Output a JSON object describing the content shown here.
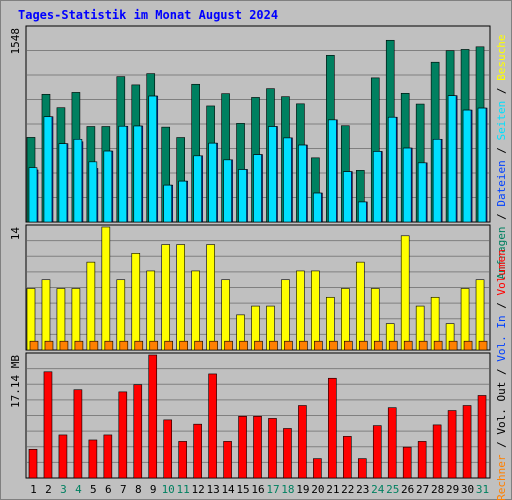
{
  "title": "Tages-Statistik im Monat August 2024",
  "colors": {
    "anfragen": "#008060",
    "dateien": "#0040ff",
    "seiten": "#00e0ff",
    "besuche": "#ffff00",
    "rechner": "#ff8000",
    "volume": "#ff0000",
    "panel_bg": "#c0c0c0",
    "grid": "#808080",
    "title": "#0000ff"
  },
  "chart_data": [
    {
      "type": "bar",
      "panel": "top",
      "ylabel_max": "1548",
      "ylim": [
        0,
        1548
      ],
      "categories": [
        "1",
        "2",
        "3",
        "4",
        "5",
        "6",
        "7",
        "8",
        "9",
        "10",
        "11",
        "12",
        "13",
        "14",
        "15",
        "16",
        "17",
        "18",
        "19",
        "20",
        "21",
        "22",
        "23",
        "24",
        "25",
        "26",
        "27",
        "28",
        "29",
        "30",
        "31"
      ],
      "weekend_days": [
        "3",
        "4",
        "10",
        "11",
        "17",
        "18",
        "24",
        "25",
        "31"
      ],
      "grid": true,
      "right_label": {
        "parts": [
          {
            "text": "Anfragen",
            "color": "#008060"
          },
          {
            "text": " / ",
            "color": "#000000"
          },
          {
            "text": "Dateien",
            "color": "#0040ff"
          },
          {
            "text": " / ",
            "color": "#000000"
          },
          {
            "text": "Seiten",
            "color": "#00e0ff"
          },
          {
            "text": " / ",
            "color": "#000000"
          },
          {
            "text": "Besuche",
            "color": "#ffff00"
          }
        ]
      },
      "series": [
        {
          "name": "Anfragen",
          "values": [
            675,
            1019,
            912,
            1034,
            762,
            762,
            1160,
            1094,
            1184,
            757,
            674,
            1099,
            926,
            1024,
            787,
            994,
            1064,
            1000,
            943,
            512,
            1330,
            768,
            412,
            1150,
            1450,
            1027,
            941,
            1275,
            1367,
            1377,
            1398
          ]
        },
        {
          "name": "Dateien",
          "values": [
            415,
            840,
            625,
            640,
            427,
            566,
            764,
            766,
            1005,
            294,
            326,
            528,
            629,
            496,
            419,
            538,
            762,
            671,
            614,
            231,
            815,
            402,
            160,
            563,
            836,
            590,
            472,
            660,
            1008,
            893,
            909
          ]
        },
        {
          "name": "Seiten",
          "values": [
            434,
            840,
            625,
            660,
            480,
            566,
            764,
            766,
            1005,
            294,
            326,
            528,
            629,
            496,
            419,
            538,
            762,
            671,
            614,
            231,
            815,
            402,
            160,
            563,
            836,
            590,
            472,
            660,
            1008,
            893,
            909
          ]
        }
      ]
    },
    {
      "type": "bar",
      "panel": "middle",
      "ylabel_max": "14",
      "ylim": [
        0,
        14
      ],
      "categories": [
        "1",
        "2",
        "3",
        "4",
        "5",
        "6",
        "7",
        "8",
        "9",
        "10",
        "11",
        "12",
        "13",
        "14",
        "15",
        "16",
        "17",
        "18",
        "19",
        "20",
        "21",
        "22",
        "23",
        "24",
        "25",
        "26",
        "27",
        "28",
        "29",
        "30",
        "31"
      ],
      "grid": true,
      "right_label": {
        "parts": [
          {
            "text": "Rechner",
            "color": "#ff8000"
          },
          {
            "text": " / ",
            "color": "#000000"
          },
          {
            "text": "Vol. Out",
            "color": "#000000"
          },
          {
            "text": " / ",
            "color": "#000000"
          },
          {
            "text": "Vol. In",
            "color": "#0040ff"
          },
          {
            "text": " / ",
            "color": "#000000"
          },
          {
            "text": "Volumen",
            "color": "#ff0000"
          }
        ]
      },
      "series": [
        {
          "name": "Besuche",
          "values": [
            7,
            8,
            7,
            7,
            10,
            14,
            8,
            11,
            9,
            12,
            12,
            9,
            12,
            8,
            4,
            5,
            5,
            8,
            9,
            9,
            6,
            7,
            10,
            7,
            3,
            13,
            5,
            6,
            3,
            7,
            8
          ]
        },
        {
          "name": "Rechner",
          "values": [
            1,
            1,
            1,
            1,
            1,
            1,
            1,
            1,
            1,
            1,
            1,
            1,
            1,
            1,
            1,
            1,
            1,
            1,
            1,
            1,
            1,
            1,
            1,
            1,
            1,
            1,
            1,
            1,
            1,
            1,
            1
          ]
        }
      ]
    },
    {
      "type": "bar",
      "panel": "bottom",
      "ylabel_max": "17.14 MB",
      "ylim": [
        0,
        17.14
      ],
      "categories": [
        "1",
        "2",
        "3",
        "4",
        "5",
        "6",
        "7",
        "8",
        "9",
        "10",
        "11",
        "12",
        "13",
        "14",
        "15",
        "16",
        "17",
        "18",
        "19",
        "20",
        "21",
        "22",
        "23",
        "24",
        "25",
        "26",
        "27",
        "28",
        "29",
        "30",
        "31"
      ],
      "grid": true,
      "series": [
        {
          "name": "Volumen",
          "values": [
            4.0,
            14.8,
            6.0,
            12.3,
            5.3,
            6.0,
            12.0,
            13.0,
            17.14,
            8.1,
            5.1,
            7.5,
            14.5,
            5.1,
            8.6,
            8.6,
            8.3,
            6.9,
            10.1,
            2.7,
            13.9,
            5.8,
            2.7,
            7.3,
            9.8,
            4.3,
            5.1,
            7.4,
            9.4,
            10.1,
            11.5
          ]
        }
      ]
    }
  ]
}
